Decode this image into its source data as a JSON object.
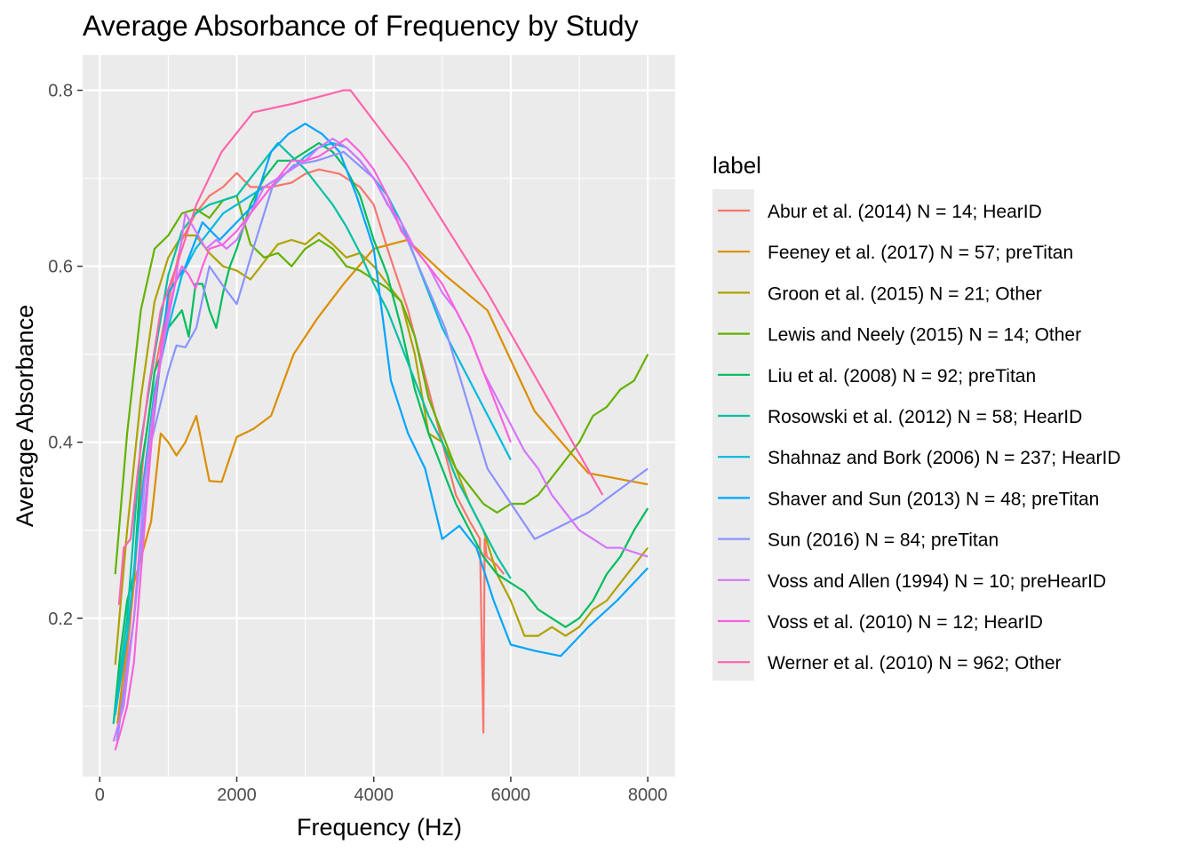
{
  "chart_data": {
    "type": "line",
    "title": "Average Absorbance of Frequency by Study",
    "xlabel": "Frequency (Hz)",
    "ylabel": "Average Absorbance",
    "xlim": [
      -250,
      8400
    ],
    "ylim": [
      0.02,
      0.84
    ],
    "x_ticks": [
      0,
      2000,
      4000,
      6000,
      8000
    ],
    "x_tick_labels": [
      "0",
      "2000",
      "4000",
      "6000",
      "8000"
    ],
    "y_ticks": [
      0.2,
      0.4,
      0.6,
      0.8
    ],
    "y_tick_labels": [
      "0.2",
      "0.4",
      "0.6",
      "0.8"
    ],
    "grid": true,
    "legend_title": "label",
    "legend_position": "right",
    "series": [
      {
        "name": "Abur et al. (2014)  N = 14; HearID",
        "color": "#F8766D",
        "x": [
          250,
          350,
          500,
          630,
          800,
          1000,
          1200,
          1400,
          1600,
          1800,
          2000,
          2200,
          2500,
          2800,
          3000,
          3200,
          3500,
          3800,
          4000,
          4200,
          4500,
          4800,
          5000,
          5200,
          5400,
          5550,
          5600,
          5620,
          5650,
          5800,
          5900
        ],
        "y": [
          0.07,
          0.12,
          0.24,
          0.38,
          0.48,
          0.56,
          0.63,
          0.66,
          0.68,
          0.69,
          0.706,
          0.69,
          0.69,
          0.695,
          0.705,
          0.71,
          0.705,
          0.69,
          0.67,
          0.62,
          0.55,
          0.46,
          0.4,
          0.34,
          0.31,
          0.29,
          0.07,
          0.29,
          0.27,
          0.26,
          0.25
        ]
      },
      {
        "name": "Feeney et al. (2017)  N = 57; preTitan",
        "color": "#DB8E00",
        "x": [
          258,
          500,
          750,
          890,
          1000,
          1120,
          1250,
          1410,
          1600,
          1780,
          2000,
          2240,
          2500,
          2830,
          3170,
          3560,
          4000,
          4490,
          5040,
          5660,
          6350,
          7130,
          8000
        ],
        "y": [
          0.08,
          0.24,
          0.31,
          0.41,
          0.4,
          0.385,
          0.4,
          0.43,
          0.356,
          0.355,
          0.406,
          0.415,
          0.43,
          0.5,
          0.54,
          0.58,
          0.62,
          0.63,
          0.59,
          0.55,
          0.435,
          0.365,
          0.352
        ]
      },
      {
        "name": "Groon et al. (2015)  N = 21; Other",
        "color": "#AEA200",
        "x": [
          226,
          400,
          600,
          800,
          1000,
          1200,
          1400,
          1600,
          1800,
          2000,
          2200,
          2400,
          2600,
          2800,
          3000,
          3200,
          3400,
          3600,
          3800,
          4000,
          4200,
          4400,
          4600,
          4800,
          5000,
          5200,
          5400,
          5600,
          5800,
          6000,
          6200,
          6400,
          6600,
          6800,
          7000,
          7200,
          7400,
          7600,
          7800,
          8000
        ],
        "y": [
          0.147,
          0.3,
          0.45,
          0.56,
          0.61,
          0.635,
          0.635,
          0.615,
          0.6,
          0.595,
          0.585,
          0.605,
          0.625,
          0.63,
          0.625,
          0.638,
          0.625,
          0.61,
          0.615,
          0.6,
          0.58,
          0.56,
          0.5,
          0.41,
          0.4,
          0.37,
          0.33,
          0.3,
          0.25,
          0.22,
          0.18,
          0.18,
          0.19,
          0.18,
          0.19,
          0.21,
          0.22,
          0.24,
          0.26,
          0.28
        ]
      },
      {
        "name": "Lewis and Neely (2015)  N = 14; Other",
        "color": "#64B200",
        "x": [
          226,
          400,
          600,
          800,
          1000,
          1200,
          1400,
          1600,
          1800,
          2000,
          2200,
          2400,
          2600,
          2800,
          3000,
          3200,
          3400,
          3600,
          3800,
          4000,
          4200,
          4400,
          4600,
          4800,
          5000,
          5200,
          5400,
          5600,
          5800,
          6000,
          6200,
          6400,
          6600,
          6800,
          7000,
          7200,
          7400,
          7600,
          7800,
          8000
        ],
        "y": [
          0.25,
          0.41,
          0.55,
          0.62,
          0.635,
          0.66,
          0.665,
          0.655,
          0.675,
          0.68,
          0.625,
          0.61,
          0.615,
          0.6,
          0.62,
          0.63,
          0.62,
          0.6,
          0.595,
          0.585,
          0.575,
          0.56,
          0.52,
          0.45,
          0.41,
          0.37,
          0.35,
          0.33,
          0.32,
          0.33,
          0.33,
          0.34,
          0.36,
          0.38,
          0.4,
          0.43,
          0.44,
          0.46,
          0.47,
          0.5
        ]
      },
      {
        "name": "Liu et al. (2008)  N = 92; preTitan",
        "color": "#00BD5C",
        "x": [
          200,
          300,
          400,
          500,
          600,
          700,
          800,
          900,
          1000,
          1100,
          1200,
          1300,
          1400,
          1500,
          1600,
          1700,
          1800,
          1900,
          2000,
          2200,
          2400,
          2600,
          2800,
          3000,
          3200,
          3400,
          3600,
          3800,
          4000,
          4200,
          4400,
          4600,
          4800,
          5000,
          5200,
          5400,
          5600,
          5800,
          6000,
          6200,
          6400,
          6600,
          6800,
          7000,
          7200,
          7400,
          7600,
          7800,
          8000
        ],
        "y": [
          0.08,
          0.16,
          0.22,
          0.25,
          0.37,
          0.42,
          0.48,
          0.5,
          0.53,
          0.54,
          0.55,
          0.52,
          0.58,
          0.58,
          0.55,
          0.53,
          0.57,
          0.6,
          0.62,
          0.67,
          0.7,
          0.72,
          0.72,
          0.73,
          0.74,
          0.73,
          0.71,
          0.68,
          0.63,
          0.59,
          0.53,
          0.46,
          0.41,
          0.37,
          0.33,
          0.3,
          0.27,
          0.25,
          0.24,
          0.23,
          0.21,
          0.2,
          0.19,
          0.2,
          0.22,
          0.25,
          0.27,
          0.3,
          0.325
        ]
      },
      {
        "name": "Rosowski et al. (2012)  N = 58; HearID",
        "color": "#00C1A3",
        "x": [
          200,
          400,
          600,
          800,
          1000,
          1200,
          1400,
          1600,
          1800,
          2000,
          2200,
          2400,
          2600,
          2800,
          3000,
          3200,
          3400,
          3600,
          3800,
          4000,
          4200,
          4400,
          4600,
          4800,
          5000,
          5200,
          5400,
          5600,
          5800,
          6000
        ],
        "y": [
          0.08,
          0.2,
          0.4,
          0.5,
          0.59,
          0.64,
          0.66,
          0.67,
          0.675,
          0.68,
          0.7,
          0.72,
          0.74,
          0.725,
          0.71,
          0.69,
          0.67,
          0.645,
          0.615,
          0.58,
          0.55,
          0.51,
          0.47,
          0.43,
          0.4,
          0.36,
          0.33,
          0.3,
          0.27,
          0.245
        ]
      },
      {
        "name": "Shahnaz and Bork (2006)  N = 237; HearID",
        "color": "#00BADE",
        "x": [
          226,
          400,
          600,
          800,
          1000,
          1200,
          1400,
          1600,
          1800,
          2000,
          2200,
          2400,
          2600,
          2800,
          3000,
          3200,
          3400,
          3600,
          3800,
          4000,
          4200,
          4400,
          4600,
          4800,
          5000,
          5200,
          5400,
          5600,
          5800,
          6000
        ],
        "y": [
          0.09,
          0.18,
          0.33,
          0.46,
          0.53,
          0.59,
          0.62,
          0.64,
          0.66,
          0.67,
          0.68,
          0.69,
          0.7,
          0.71,
          0.725,
          0.735,
          0.74,
          0.735,
          0.72,
          0.7,
          0.68,
          0.65,
          0.61,
          0.57,
          0.53,
          0.5,
          0.47,
          0.44,
          0.41,
          0.38
        ]
      },
      {
        "name": "Shaver and Sun (2013)  N = 48; preTitan",
        "color": "#00A5FF",
        "x": [
          250,
          500,
          750,
          1000,
          1250,
          1500,
          1750,
          2000,
          2250,
          2500,
          2750,
          3000,
          3250,
          3500,
          3750,
          4000,
          4250,
          4500,
          4750,
          5000,
          5250,
          5500,
          5750,
          6000,
          6350,
          6730,
          7130,
          7550,
          8000
        ],
        "y": [
          0.06,
          0.2,
          0.4,
          0.57,
          0.6,
          0.65,
          0.63,
          0.65,
          0.67,
          0.73,
          0.75,
          0.762,
          0.75,
          0.73,
          0.68,
          0.62,
          0.47,
          0.41,
          0.37,
          0.29,
          0.305,
          0.28,
          0.22,
          0.17,
          0.163,
          0.157,
          0.19,
          0.22,
          0.257
        ]
      },
      {
        "name": "Sun (2016)  N = 84; preTitan",
        "color": "#8B93FF",
        "x": [
          250,
          500,
          750,
          1000,
          1120,
          1250,
          1410,
          1600,
          1780,
          2000,
          2240,
          2520,
          2830,
          3170,
          3560,
          4000,
          4490,
          5040,
          5660,
          6350,
          7130,
          8000
        ],
        "y": [
          0.06,
          0.2,
          0.4,
          0.48,
          0.51,
          0.508,
          0.53,
          0.6,
          0.58,
          0.557,
          0.62,
          0.69,
          0.715,
          0.72,
          0.73,
          0.7,
          0.63,
          0.53,
          0.37,
          0.29,
          0.32,
          0.37
        ]
      },
      {
        "name": "Voss and Allen (1994)  N = 10; preHearID",
        "color": "#D575FE",
        "x": [
          200,
          350,
          500,
          650,
          800,
          950,
          1100,
          1250,
          1400,
          1550,
          1700,
          1850,
          2000,
          2200,
          2400,
          2600,
          2800,
          3000,
          3200,
          3400,
          3600,
          3800,
          4000,
          4200,
          4400,
          4600,
          4800,
          5000,
          5200,
          5400,
          5600,
          5800,
          6000,
          6200,
          6400,
          6600,
          6800,
          7000,
          7200,
          7400,
          7600,
          7800,
          8000
        ],
        "y": [
          0.06,
          0.1,
          0.2,
          0.35,
          0.45,
          0.52,
          0.58,
          0.66,
          0.64,
          0.62,
          0.63,
          0.62,
          0.63,
          0.66,
          0.69,
          0.7,
          0.71,
          0.72,
          0.735,
          0.745,
          0.735,
          0.72,
          0.7,
          0.67,
          0.65,
          0.62,
          0.6,
          0.57,
          0.55,
          0.52,
          0.48,
          0.45,
          0.42,
          0.39,
          0.37,
          0.34,
          0.32,
          0.3,
          0.29,
          0.28,
          0.28,
          0.275,
          0.27
        ]
      },
      {
        "name": "Voss et al. (2010)  N = 12; HearID",
        "color": "#F962DD",
        "x": [
          226,
          300,
          400,
          500,
          600,
          700,
          800,
          900,
          1000,
          1100,
          1200,
          1300,
          1400,
          1500,
          1600,
          1800,
          2000,
          2200,
          2400,
          2600,
          2800,
          3000,
          3200,
          3400,
          3600,
          3800,
          4000,
          4200,
          4400,
          4600,
          4800,
          5000,
          5200,
          5400,
          5600,
          5800,
          6000
        ],
        "y": [
          0.05,
          0.07,
          0.1,
          0.15,
          0.25,
          0.35,
          0.44,
          0.51,
          0.55,
          0.58,
          0.6,
          0.59,
          0.575,
          0.6,
          0.62,
          0.625,
          0.64,
          0.66,
          0.68,
          0.7,
          0.72,
          0.72,
          0.725,
          0.735,
          0.745,
          0.73,
          0.71,
          0.68,
          0.64,
          0.62,
          0.6,
          0.58,
          0.55,
          0.52,
          0.48,
          0.44,
          0.4
        ]
      },
      {
        "name": "Werner et al. (2010)  N = 962; Other",
        "color": "#FF65AC",
        "x": [
          280,
          350,
          450,
          560,
          710,
          890,
          1120,
          1410,
          1780,
          2240,
          2830,
          3560,
          3660,
          4490,
          5660,
          7340
        ],
        "y": [
          0.215,
          0.28,
          0.29,
          0.37,
          0.46,
          0.55,
          0.6,
          0.67,
          0.73,
          0.775,
          0.785,
          0.8,
          0.8,
          0.715,
          0.57,
          0.34
        ]
      }
    ]
  }
}
